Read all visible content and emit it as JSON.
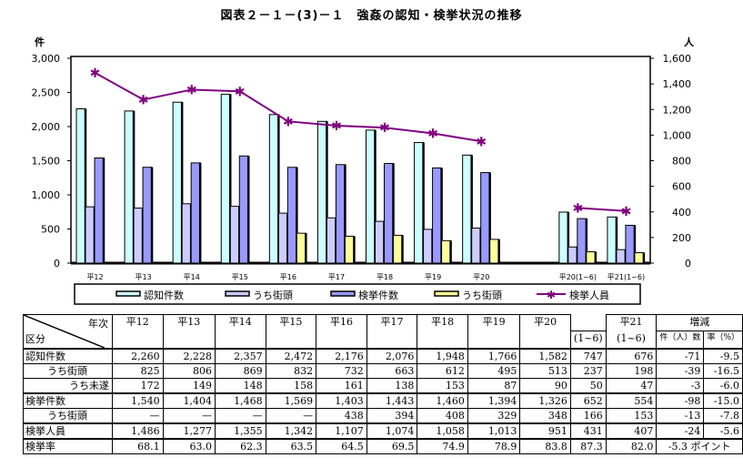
{
  "title": "図表２－１－(3)－１　強姦の認知・検挙状況の推移",
  "chart_data": {
    "type": "bar",
    "title": "図表２－１－(3)－１　強姦の認知・検挙状況の推移",
    "ylabel": "件",
    "y2label": "人",
    "ylim": [
      0,
      3000
    ],
    "y2lim": [
      0,
      1600
    ],
    "yticks": [
      "0",
      "500",
      "1,000",
      "1,500",
      "2,000",
      "2,500",
      "3,000"
    ],
    "y2ticks": [
      "0",
      "200",
      "400",
      "600",
      "800",
      "1,000",
      "1,200",
      "1,400",
      "1,600"
    ],
    "categories": [
      "平12",
      "平13",
      "平14",
      "平15",
      "平16",
      "平17",
      "平18",
      "平19",
      "平20",
      "",
      "平20(1~6)",
      "平21(1~6)"
    ],
    "series": [
      {
        "name": "認知件数",
        "type": "bar",
        "color": "#ccffff",
        "values": [
          2260,
          2228,
          2357,
          2472,
          2176,
          2076,
          1948,
          1766,
          1582,
          null,
          747,
          676
        ]
      },
      {
        "name": "うち街頭",
        "type": "bar",
        "color": "#ccccff",
        "values": [
          825,
          806,
          869,
          832,
          732,
          663,
          612,
          495,
          513,
          null,
          237,
          198
        ]
      },
      {
        "name": "検挙件数",
        "type": "bar",
        "color": "#9999ff",
        "values": [
          1540,
          1404,
          1468,
          1569,
          1403,
          1443,
          1460,
          1394,
          1326,
          null,
          652,
          554
        ]
      },
      {
        "name": "うち街頭",
        "type": "bar",
        "color": "#ffff99",
        "values": [
          null,
          null,
          null,
          null,
          438,
          394,
          408,
          329,
          348,
          null,
          166,
          153
        ]
      },
      {
        "name": "検挙人員",
        "type": "line",
        "axis": "right",
        "color": "#800080",
        "values": [
          1486,
          1277,
          1355,
          1342,
          1107,
          1074,
          1058,
          1013,
          951,
          null,
          431,
          407
        ]
      }
    ],
    "legend": "bottom",
    "grid": false
  },
  "table": {
    "corner_top": "年次",
    "corner_bottom": "区分",
    "headers": [
      "平12",
      "平13",
      "平14",
      "平15",
      "平16",
      "平17",
      "平18",
      "平19",
      "平20",
      "",
      "平21"
    ],
    "subheaders": [
      "",
      "",
      "",
      "",
      "",
      "",
      "",
      "",
      "",
      "(1~6)",
      "(1~6)"
    ],
    "change_header": "増減",
    "change_sub": [
      "件（人）数",
      "率（%）"
    ],
    "rows": [
      {
        "label": "認知件数",
        "indent": 0,
        "values": [
          "2,260",
          "2,228",
          "2,357",
          "2,472",
          "2,176",
          "2,076",
          "1,948",
          "1,766",
          "1,582",
          "747",
          "676"
        ],
        "diff": "-71",
        "rate": "-9.5"
      },
      {
        "label": "うち街頭",
        "indent": 1,
        "values": [
          "825",
          "806",
          "869",
          "832",
          "732",
          "663",
          "612",
          "495",
          "513",
          "237",
          "198"
        ],
        "diff": "-39",
        "rate": "-16.5"
      },
      {
        "label": "うち未遂",
        "indent": 2,
        "values": [
          "172",
          "149",
          "148",
          "158",
          "161",
          "138",
          "153",
          "87",
          "90",
          "50",
          "47"
        ],
        "diff": "-3",
        "rate": "-6.0"
      },
      {
        "label": "検挙件数",
        "indent": 0,
        "values": [
          "1,540",
          "1,404",
          "1,468",
          "1,569",
          "1,403",
          "1,443",
          "1,460",
          "1,394",
          "1,326",
          "652",
          "554"
        ],
        "diff": "-98",
        "rate": "-15.0"
      },
      {
        "label": "うち街頭",
        "indent": 1,
        "values": [
          "—",
          "—",
          "—",
          "—",
          "438",
          "394",
          "408",
          "329",
          "348",
          "166",
          "153"
        ],
        "diff": "-13",
        "rate": "-7.8"
      },
      {
        "label": "検挙人員",
        "indent": 0,
        "values": [
          "1,486",
          "1,277",
          "1,355",
          "1,342",
          "1,107",
          "1,074",
          "1,058",
          "1,013",
          "951",
          "431",
          "407"
        ],
        "diff": "-24",
        "rate": "-5.6"
      },
      {
        "label": "検挙率",
        "indent": 0,
        "values": [
          "68.1",
          "63.0",
          "62.3",
          "63.5",
          "64.5",
          "69.5",
          "74.9",
          "78.9",
          "83.8",
          "87.3",
          "82.0"
        ],
        "diff_merged": "-5.3 ポイント"
      }
    ]
  }
}
